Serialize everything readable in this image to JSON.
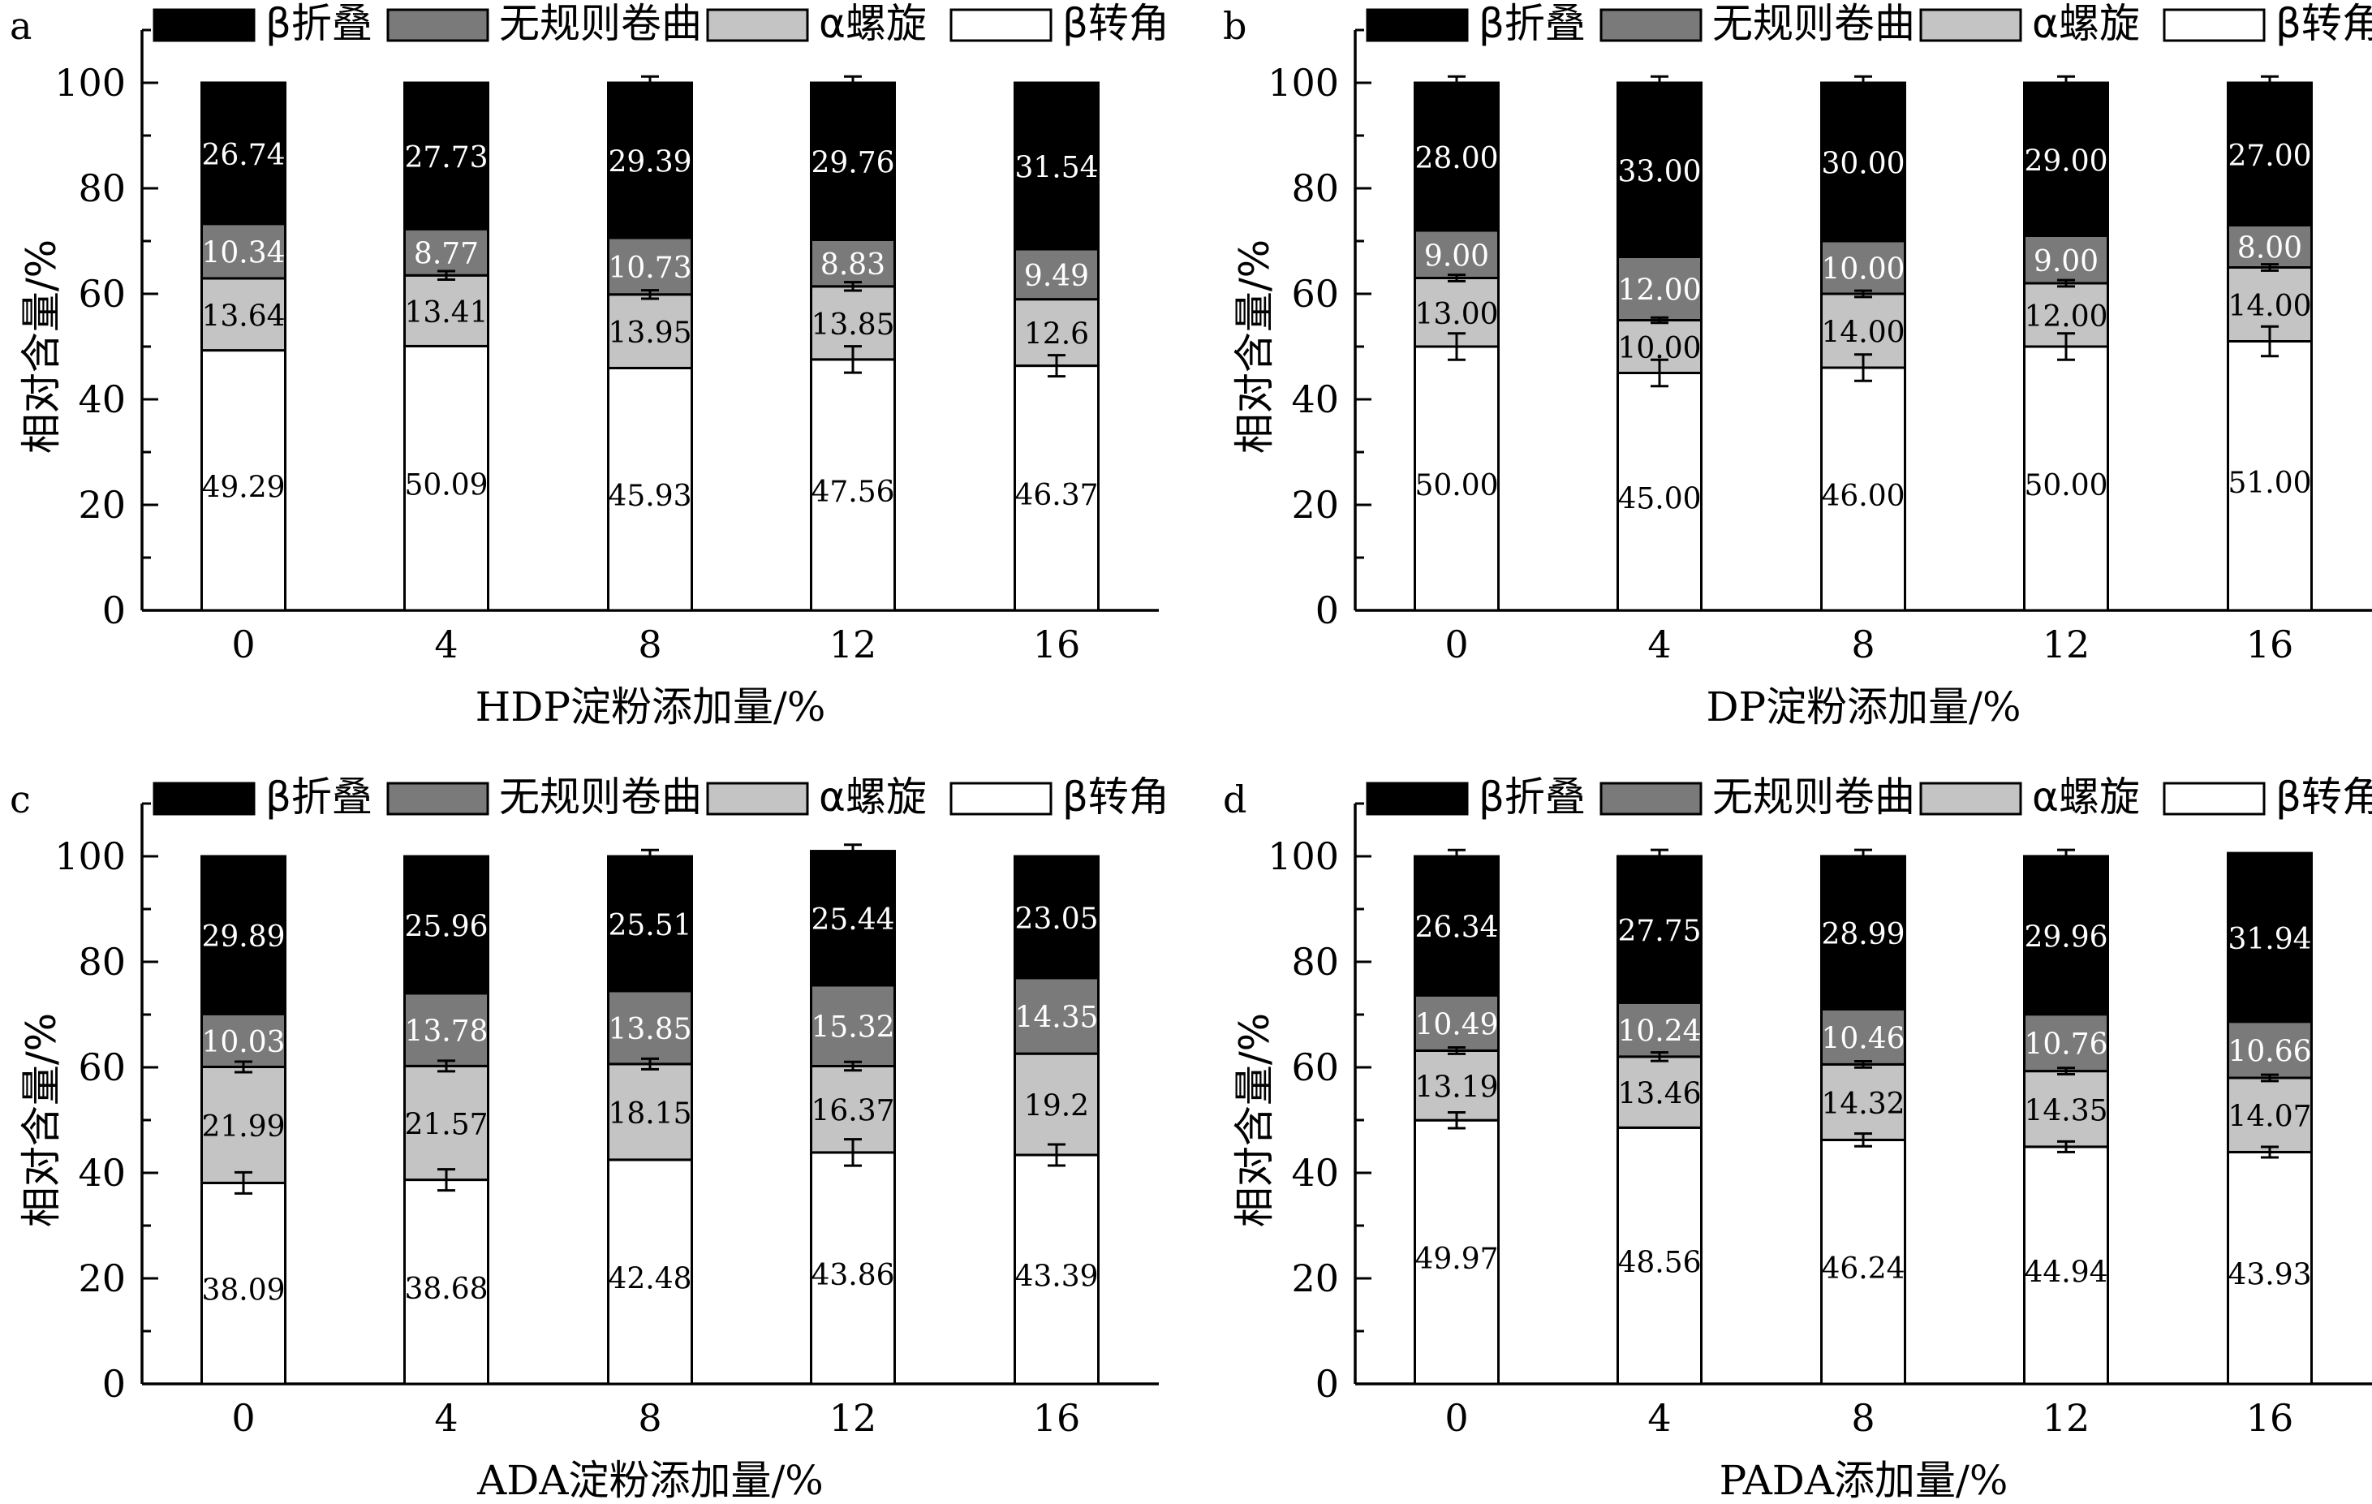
{
  "legend": {
    "labels": [
      "β折叠",
      "无规则卷曲",
      "α螺旋",
      "β转角"
    ],
    "colors": [
      "#000000",
      "#7a7a7a",
      "#c4c4c4",
      "#ffffff"
    ]
  },
  "chart_data": [
    {
      "type": "bar",
      "stacked": true,
      "panel_label": "a",
      "categories": [
        "0",
        "4",
        "8",
        "12",
        "16"
      ],
      "xlabel": "HDP淀粉添加量/%",
      "ylabel": "相对含量/%",
      "ylim": [
        0,
        110
      ],
      "yticks": [
        0,
        20,
        40,
        60,
        80,
        100
      ],
      "series": [
        {
          "name": "β转角",
          "values": [
            49.29,
            50.09,
            45.93,
            47.56,
            46.37
          ],
          "labels": [
            "49.29",
            "50.09",
            "45.93",
            "47.56",
            "46.37"
          ],
          "errors": [
            0,
            0,
            0,
            2.5,
            2
          ]
        },
        {
          "name": "α螺旋",
          "values": [
            13.64,
            13.41,
            13.95,
            13.85,
            12.6
          ],
          "labels": [
            "13.64",
            "13.41",
            "13.95",
            "13.85",
            "12.6"
          ],
          "errors": [
            0,
            0.8,
            0.8,
            0.8,
            0
          ]
        },
        {
          "name": "无规则卷曲",
          "values": [
            10.34,
            8.77,
            10.73,
            8.83,
            9.49
          ],
          "labels": [
            "10.34",
            "8.77",
            "10.73",
            "8.83",
            "9.49"
          ],
          "errors": [
            0,
            0,
            0,
            0,
            0
          ]
        },
        {
          "name": "β折叠",
          "values": [
            26.74,
            27.73,
            29.39,
            29.76,
            31.54
          ],
          "labels": [
            "26.74",
            "27.73",
            "29.39",
            "29.76",
            "31.54"
          ],
          "errors": [
            0,
            0,
            1.2,
            1.2,
            0
          ]
        }
      ]
    },
    {
      "type": "bar",
      "stacked": true,
      "panel_label": "b",
      "categories": [
        "0",
        "4",
        "8",
        "12",
        "16"
      ],
      "xlabel": "DP淀粉添加量/%",
      "ylabel": "相对含量/%",
      "ylim": [
        0,
        110
      ],
      "yticks": [
        0,
        20,
        40,
        60,
        80,
        100
      ],
      "series": [
        {
          "name": "β转角",
          "values": [
            50.0,
            45.0,
            46.0,
            50.0,
            51.0
          ],
          "labels": [
            "50.00",
            "45.00",
            "46.00",
            "50.00",
            "51.00"
          ],
          "errors": [
            2.5,
            2.5,
            2.5,
            2.5,
            2.8
          ]
        },
        {
          "name": "α螺旋",
          "values": [
            13.0,
            10.0,
            14.0,
            12.0,
            14.0
          ],
          "labels": [
            "13.00",
            "10.00",
            "14.00",
            "12.00",
            "14.00"
          ],
          "errors": [
            0.6,
            0.5,
            0.6,
            0.6,
            0.6
          ]
        },
        {
          "name": "无规则卷曲",
          "values": [
            9.0,
            12.0,
            10.0,
            9.0,
            8.0
          ],
          "labels": [
            "9.00",
            "12.00",
            "10.00",
            "9.00",
            "8.00"
          ],
          "errors": [
            0,
            0,
            0,
            0,
            0
          ]
        },
        {
          "name": "β折叠",
          "values": [
            28.0,
            33.0,
            30.0,
            29.0,
            27.0
          ],
          "labels": [
            "28.00",
            "33.00",
            "30.00",
            "29.00",
            "27.00"
          ],
          "errors": [
            1.2,
            1.2,
            1.2,
            1.2,
            1.2
          ]
        }
      ]
    },
    {
      "type": "bar",
      "stacked": true,
      "panel_label": "c",
      "categories": [
        "0",
        "4",
        "8",
        "12",
        "16"
      ],
      "xlabel": "ADA淀粉添加量/%",
      "ylabel": "相对含量/%",
      "ylim": [
        0,
        110
      ],
      "yticks": [
        0,
        20,
        40,
        60,
        80,
        100
      ],
      "series": [
        {
          "name": "β转角",
          "values": [
            38.09,
            38.68,
            42.48,
            43.86,
            43.39
          ],
          "labels": [
            "38.09",
            "38.68",
            "42.48",
            "43.86",
            "43.39"
          ],
          "errors": [
            2,
            2,
            0,
            2.5,
            2
          ]
        },
        {
          "name": "α螺旋",
          "values": [
            21.99,
            21.57,
            18.15,
            16.37,
            19.2
          ],
          "labels": [
            "21.99",
            "21.57",
            "18.15",
            "16.37",
            "19.2"
          ],
          "errors": [
            1,
            1,
            1,
            0.8,
            0
          ]
        },
        {
          "name": "无规则卷曲",
          "values": [
            10.03,
            13.78,
            13.85,
            15.32,
            14.35
          ],
          "labels": [
            "10.03",
            "13.78",
            "13.85",
            "15.32",
            "14.35"
          ],
          "errors": [
            0,
            0,
            0,
            0,
            0
          ]
        },
        {
          "name": "β折叠",
          "values": [
            29.89,
            25.96,
            25.51,
            25.44,
            23.05
          ],
          "labels": [
            "29.89",
            "25.96",
            "25.51",
            "25.44",
            "23.05"
          ],
          "errors": [
            0,
            0,
            1.2,
            1.2,
            0
          ]
        }
      ]
    },
    {
      "type": "bar",
      "stacked": true,
      "panel_label": "d",
      "categories": [
        "0",
        "4",
        "8",
        "12",
        "16"
      ],
      "xlabel": "PADA添加量/%",
      "ylabel": "相对含量/%",
      "ylim": [
        0,
        110
      ],
      "yticks": [
        0,
        20,
        40,
        60,
        80,
        100
      ],
      "series": [
        {
          "name": "β转角",
          "values": [
            49.97,
            48.56,
            46.24,
            44.94,
            43.93
          ],
          "labels": [
            "49.97",
            "48.56",
            "46.24",
            "44.94",
            "43.93"
          ],
          "errors": [
            1.5,
            0,
            1.2,
            1,
            1
          ]
        },
        {
          "name": "α螺旋",
          "values": [
            13.19,
            13.46,
            14.32,
            14.35,
            14.07
          ],
          "labels": [
            "13.19",
            "13.46",
            "14.32",
            "14.35",
            "14.07"
          ],
          "errors": [
            0.6,
            0.8,
            0.6,
            0.6,
            0.6
          ]
        },
        {
          "name": "无规则卷曲",
          "values": [
            10.49,
            10.24,
            10.46,
            10.76,
            10.66
          ],
          "labels": [
            "10.49",
            "10.24",
            "10.46",
            "10.76",
            "10.66"
          ],
          "errors": [
            0,
            0,
            0,
            0,
            0
          ]
        },
        {
          "name": "β折叠",
          "values": [
            26.34,
            27.75,
            28.99,
            29.96,
            31.94
          ],
          "labels": [
            "26.34",
            "27.75",
            "28.99",
            "29.96",
            "31.94"
          ],
          "errors": [
            1.2,
            1.2,
            1.2,
            1.2,
            0
          ]
        }
      ]
    }
  ]
}
